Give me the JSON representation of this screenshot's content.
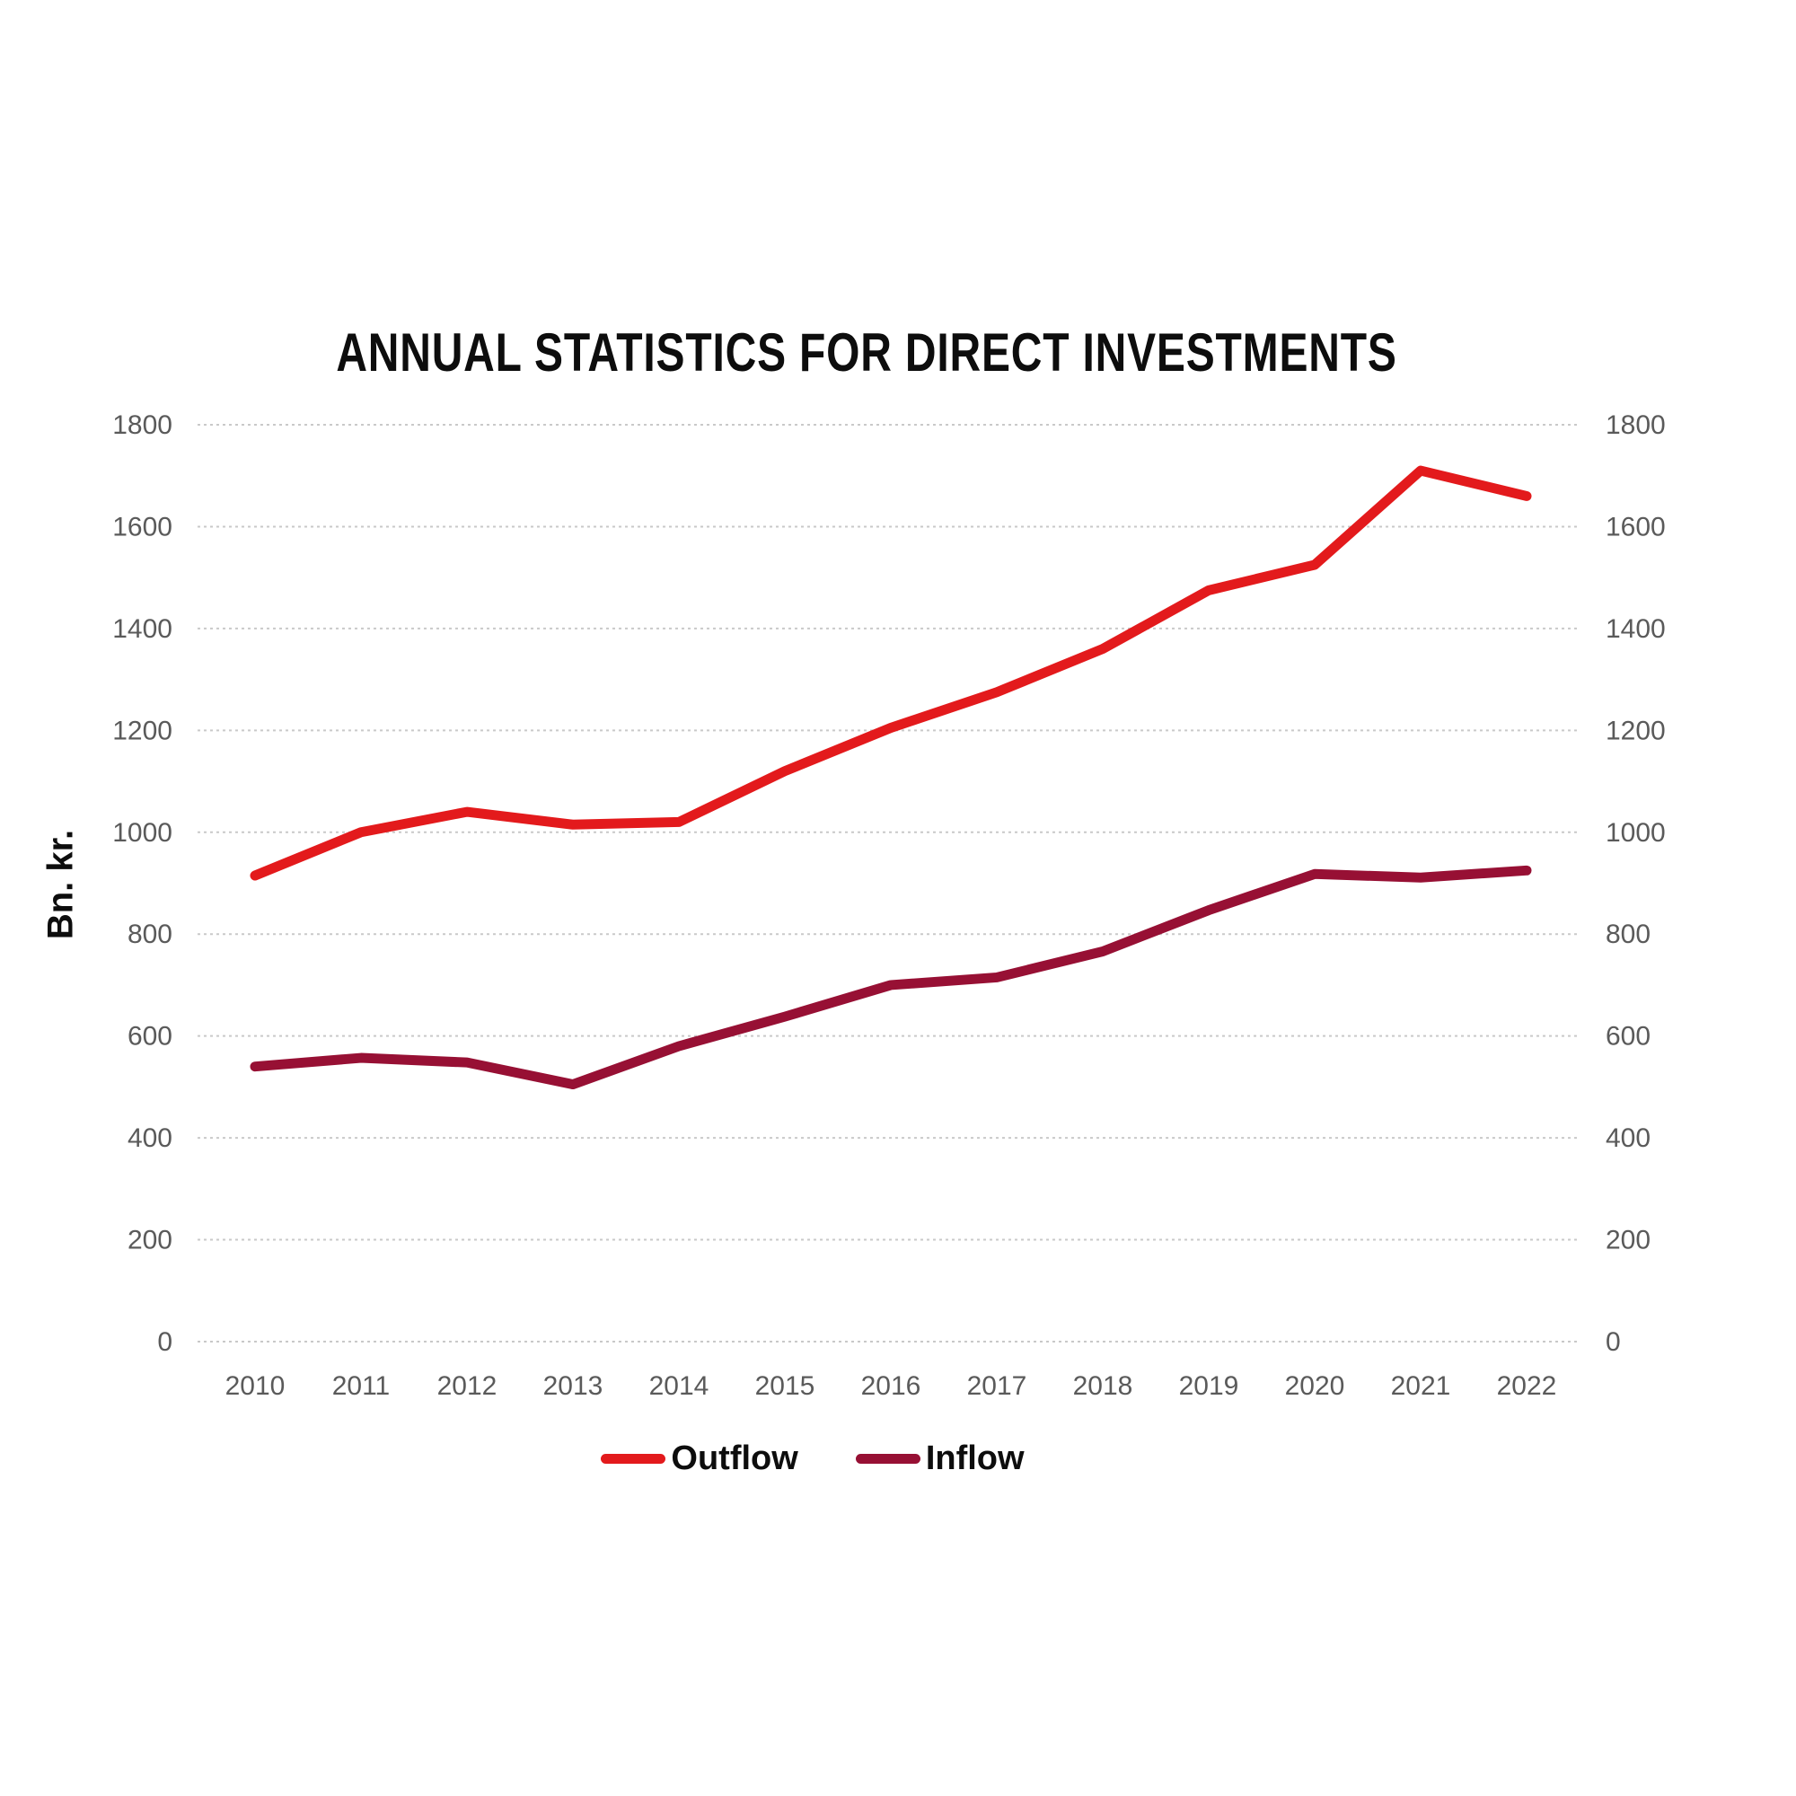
{
  "title": "ANNUAL STATISTICS FOR DIRECT INVESTMENTS",
  "chart_data": {
    "type": "line",
    "title": "ANNUAL STATISTICS FOR DIRECT INVESTMENTS",
    "xlabel": "",
    "ylabel": "Bn. kr.",
    "x": [
      2010,
      2011,
      2012,
      2013,
      2014,
      2015,
      2016,
      2017,
      2018,
      2019,
      2020,
      2021,
      2022
    ],
    "series": [
      {
        "name": "Outflow",
        "color": "#e31a1c",
        "values": [
          915,
          1000,
          1040,
          1015,
          1020,
          1120,
          1205,
          1275,
          1360,
          1475,
          1525,
          1710,
          1660
        ]
      },
      {
        "name": "Inflow",
        "color": "#971034",
        "values": [
          540,
          557,
          548,
          505,
          580,
          638,
          700,
          715,
          766,
          847,
          918,
          911,
          925
        ]
      }
    ],
    "ylim": [
      0,
      1800
    ],
    "ytick_step": 200,
    "yticks": [
      0,
      200,
      400,
      600,
      800,
      1000,
      1200,
      1400,
      1600,
      1800
    ],
    "grid": true,
    "gridline_style": "dotted",
    "grid_color": "#c9c9c9",
    "tick_label_color": "#5a5a5a",
    "y_axis_sides": "both",
    "legend_position": "bottom"
  }
}
